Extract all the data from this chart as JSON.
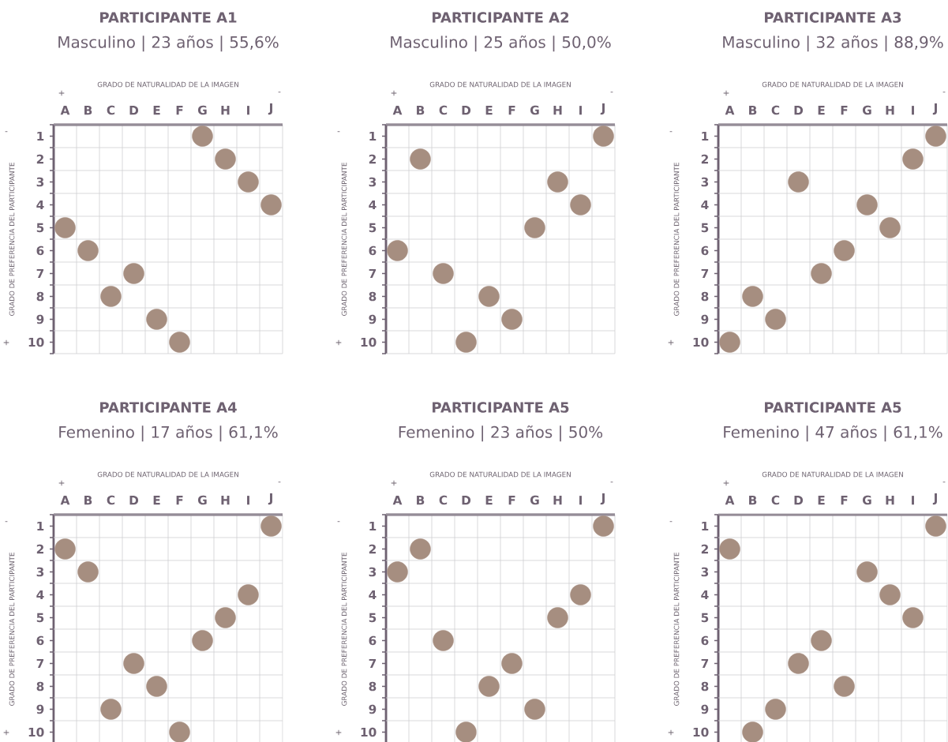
{
  "chart_data": [
    {
      "type": "scatter",
      "title": "PARTICIPANTE A1",
      "subtitle": "Masculino | 23 años | 55,6%",
      "xlabel": "GRADO DE NATURALIDAD DE LA IMAGEN",
      "ylabel": "GRADO DE PREFERENCIA DEL PARTICIPANTE",
      "categories": [
        "A",
        "B",
        "C",
        "D",
        "E",
        "F",
        "G",
        "H",
        "I",
        "J"
      ],
      "series": [
        {
          "color": "#a68e80",
          "values": [
            5,
            6,
            8,
            7,
            9,
            10,
            1,
            2,
            3,
            4
          ]
        }
      ],
      "ylim": [
        10.5,
        0.5
      ],
      "yticks": [
        {
          "value": 0.5,
          "label": null
        },
        1,
        {
          "value": 1.5,
          "label": null
        },
        2,
        {
          "value": 2.5,
          "label": null
        },
        3,
        {
          "value": 3.5,
          "label": null
        },
        4,
        {
          "value": 4.5,
          "label": null
        },
        5,
        {
          "value": 5.5,
          "label": null
        },
        6,
        {
          "value": 6.5,
          "label": null
        },
        7,
        {
          "value": 7.5,
          "label": null
        },
        8,
        {
          "value": 8.5,
          "label": null
        },
        9,
        {
          "value": 9.5,
          "label": null
        },
        10,
        {
          "value": 10.5,
          "label": null
        }
      ],
      "grid": true,
      "marker": "circle",
      "annotations": [
        "+",
        "-",
        "-",
        "+"
      ]
    },
    {
      "type": "scatter",
      "title": "PARTICIPANTE A2",
      "subtitle": "Masculino | 25 años | 50,0%",
      "xlabel": "GRADO DE NATURALIDAD DE LA IMAGEN",
      "ylabel": "GRADO DE PREFERENCIA DEL PARTICIPANTE",
      "categories": [
        "A",
        "B",
        "C",
        "D",
        "E",
        "F",
        "G",
        "H",
        "I",
        "J"
      ],
      "series": [
        {
          "color": "#a68e80",
          "values": [
            6,
            2,
            7,
            10,
            8,
            9,
            5,
            3,
            4,
            1
          ]
        }
      ],
      "ylim": [
        10.5,
        0.5
      ],
      "yticks": [
        {
          "value": 0.5,
          "label": null
        },
        1,
        {
          "value": 1.5,
          "label": null
        },
        2,
        {
          "value": 2.5,
          "label": null
        },
        3,
        {
          "value": 3.5,
          "label": null
        },
        4,
        {
          "value": 4.5,
          "label": null
        },
        5,
        {
          "value": 5.5,
          "label": null
        },
        6,
        {
          "value": 6.5,
          "label": null
        },
        7,
        {
          "value": 7.5,
          "label": null
        },
        8,
        {
          "value": 8.5,
          "label": null
        },
        9,
        {
          "value": 9.5,
          "label": null
        },
        10,
        {
          "value": 10.5,
          "label": null
        }
      ],
      "grid": true,
      "marker": "circle",
      "annotations": [
        "+",
        "-",
        "-",
        "+"
      ]
    },
    {
      "type": "scatter",
      "title": "PARTICIPANTE A3",
      "subtitle": "Masculino | 32 años | 88,9%",
      "xlabel": "GRADO DE NATURALIDAD DE LA IMAGEN",
      "ylabel": "GRADO DE PREFERENCIA DEL PARTICIPANTE",
      "categories": [
        "A",
        "B",
        "C",
        "D",
        "E",
        "F",
        "G",
        "H",
        "I",
        "J"
      ],
      "series": [
        {
          "color": "#a68e80",
          "values": [
            10,
            8,
            9,
            3,
            7,
            6,
            4,
            5,
            2,
            1
          ]
        }
      ],
      "ylim": [
        10.5,
        0.5
      ],
      "yticks": [
        {
          "value": 0.5,
          "label": null
        },
        1,
        {
          "value": 1.5,
          "label": null
        },
        2,
        {
          "value": 2.5,
          "label": null
        },
        3,
        {
          "value": 3.5,
          "label": null
        },
        4,
        {
          "value": 4.5,
          "label": null
        },
        5,
        {
          "value": 5.5,
          "label": null
        },
        6,
        {
          "value": 6.5,
          "label": null
        },
        7,
        {
          "value": 7.5,
          "label": null
        },
        8,
        {
          "value": 8.5,
          "label": null
        },
        9,
        {
          "value": 9.5,
          "label": null
        },
        10,
        {
          "value": 10.5,
          "label": null
        }
      ],
      "grid": true,
      "marker": "circle",
      "annotations": [
        "+",
        "-",
        "-",
        "+"
      ]
    },
    {
      "type": "scatter",
      "title": "PARTICIPANTE A4",
      "subtitle": "Femenino | 17 años | 61,1%",
      "xlabel": "GRADO DE NATURALIDAD DE LA IMAGEN",
      "ylabel": "GRADO DE PREFERENCIA DEL PARTICIPANTE",
      "categories": [
        "A",
        "B",
        "C",
        "D",
        "E",
        "F",
        "G",
        "H",
        "I",
        "J"
      ],
      "series": [
        {
          "color": "#a68e80",
          "values": [
            2,
            3,
            9,
            7,
            8,
            10,
            6,
            5,
            4,
            1
          ]
        }
      ],
      "ylim": [
        10.5,
        0.5
      ],
      "yticks": [
        {
          "value": 0.5,
          "label": null
        },
        1,
        {
          "value": 1.5,
          "label": null
        },
        2,
        {
          "value": 2.5,
          "label": null
        },
        3,
        {
          "value": 3.5,
          "label": null
        },
        4,
        {
          "value": 4.5,
          "label": null
        },
        5,
        {
          "value": 5.5,
          "label": null
        },
        6,
        {
          "value": 6.5,
          "label": null
        },
        7,
        {
          "value": 7.5,
          "label": null
        },
        8,
        {
          "value": 8.5,
          "label": null
        },
        9,
        {
          "value": 9.5,
          "label": null
        },
        10,
        {
          "value": 10.5,
          "label": null
        }
      ],
      "grid": true,
      "marker": "circle",
      "annotations": [
        "+",
        "-",
        "-",
        "+"
      ]
    },
    {
      "type": "scatter",
      "title": "PARTICIPANTE A5",
      "subtitle": "Femenino | 23 años | 50%",
      "xlabel": "GRADO DE NATURALIDAD DE LA IMAGEN",
      "ylabel": "GRADO DE PREFERENCIA DEL PARTICIPANTE",
      "categories": [
        "A",
        "B",
        "C",
        "D",
        "E",
        "F",
        "G",
        "H",
        "I",
        "J"
      ],
      "series": [
        {
          "color": "#a68e80",
          "values": [
            3,
            2,
            6,
            10,
            8,
            7,
            9,
            5,
            4,
            1
          ]
        }
      ],
      "ylim": [
        10.5,
        0.5
      ],
      "yticks": [
        {
          "value": 0.5,
          "label": null
        },
        1,
        {
          "value": 1.5,
          "label": null
        },
        2,
        {
          "value": 2.5,
          "label": null
        },
        3,
        {
          "value": 3.5,
          "label": null
        },
        4,
        {
          "value": 4.5,
          "label": null
        },
        5,
        {
          "value": 5.5,
          "label": null
        },
        6,
        {
          "value": 6.5,
          "label": null
        },
        7,
        {
          "value": 7.5,
          "label": null
        },
        8,
        {
          "value": 8.5,
          "label": null
        },
        9,
        {
          "value": 9.5,
          "label": null
        },
        10,
        {
          "value": 10.5,
          "label": null
        }
      ],
      "grid": true,
      "marker": "circle",
      "annotations": [
        "+",
        "-",
        "-",
        "+"
      ]
    },
    {
      "type": "scatter",
      "title": "PARTICIPANTE A5",
      "subtitle": "Femenino | 47 años | 61,1%",
      "xlabel": "GRADO DE NATURALIDAD DE LA IMAGEN",
      "ylabel": "GRADO DE PREFERENCIA DEL PARTICIPANTE",
      "categories": [
        "A",
        "B",
        "C",
        "D",
        "E",
        "F",
        "G",
        "H",
        "I",
        "J"
      ],
      "series": [
        {
          "color": "#a68e80",
          "values": [
            2,
            10,
            9,
            7,
            6,
            8,
            3,
            4,
            5,
            1
          ]
        }
      ],
      "ylim": [
        10.5,
        0.5
      ],
      "yticks": [
        {
          "value": 0.5,
          "label": null
        },
        1,
        {
          "value": 1.5,
          "label": null
        },
        2,
        {
          "value": 2.5,
          "label": null
        },
        3,
        {
          "value": 3.5,
          "label": null
        },
        4,
        {
          "value": 4.5,
          "label": null
        },
        5,
        {
          "value": 5.5,
          "label": null
        },
        6,
        {
          "value": 6.5,
          "label": null
        },
        7,
        {
          "value": 7.5,
          "label": null
        },
        8,
        {
          "value": 8.5,
          "label": null
        },
        9,
        {
          "value": 9.5,
          "label": null
        },
        10,
        {
          "value": 10.5,
          "label": null
        }
      ],
      "grid": true,
      "marker": "circle",
      "annotations": [
        "+",
        "-",
        "-",
        "+"
      ]
    }
  ]
}
